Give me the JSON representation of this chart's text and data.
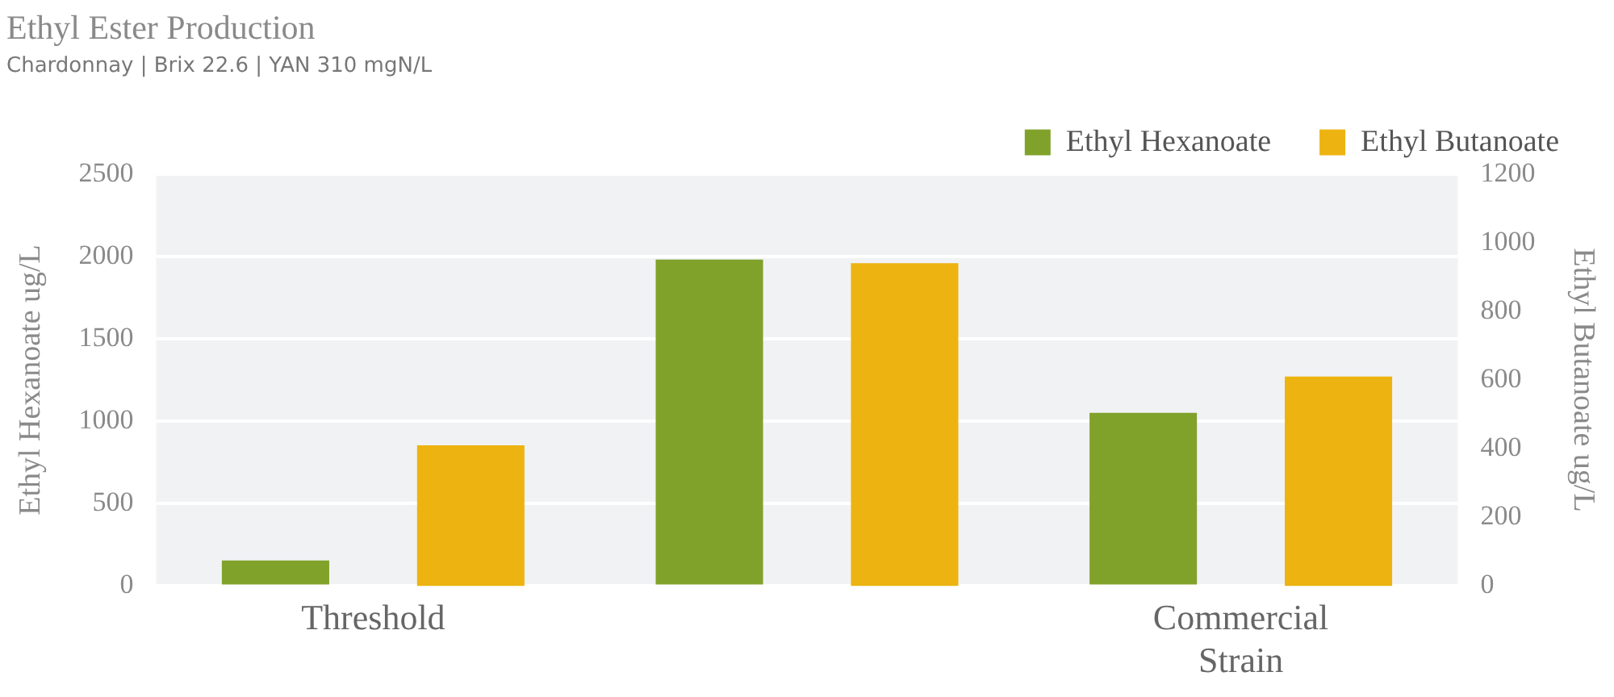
{
  "chart_data": {
    "type": "bar",
    "title": "Ethyl Ester Production",
    "subtitle": "Chardonnay | Brix 22.6 | YAN 310 mgN/L",
    "ylabel": "Ethyl Hexanoate ug/L",
    "y2label": "Ethyl Butanoate ug/L",
    "categories": [
      "Threshold",
      null,
      "Commercial Strain"
    ],
    "series": [
      {
        "name": "Ethyl Hexanoate",
        "color": "#80a22b",
        "values": [
          155,
          1980,
          1050
        ]
      },
      {
        "name": "Ethyl Butanoate",
        "color": "#edb310",
        "values": [
          410,
          940,
          610
        ],
        "axis": "y2"
      }
    ],
    "ylim": [
      0,
      2500
    ],
    "yticks": [
      0,
      500,
      1000,
      1500,
      2000,
      2500
    ],
    "y2lim": [
      0,
      1200
    ],
    "y2ticks": [
      0,
      200,
      400,
      600,
      800,
      1000,
      1200
    ],
    "grid": "y",
    "legend": "top right"
  }
}
